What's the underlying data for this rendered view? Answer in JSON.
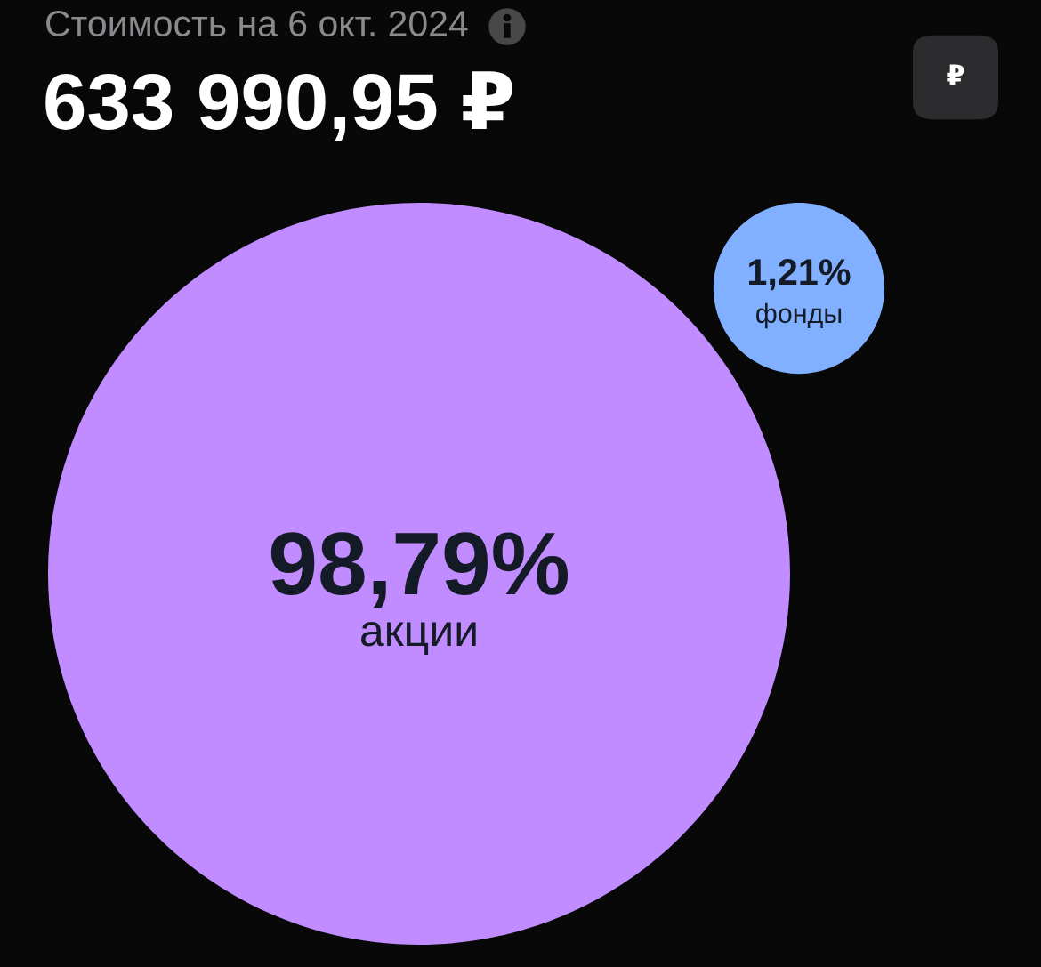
{
  "chart_data": {
    "type": "other",
    "title": "Стоимость на 6 окт. 2024",
    "subtitle": "633 990,95 ₽",
    "categories": [
      "акции",
      "фонды"
    ],
    "values": [
      98.79,
      1.21
    ],
    "value_labels": [
      "98,79%",
      "1,21%"
    ],
    "colors": [
      "#c08cff",
      "#80b0ff"
    ],
    "annotations": [
      "₽"
    ]
  }
}
